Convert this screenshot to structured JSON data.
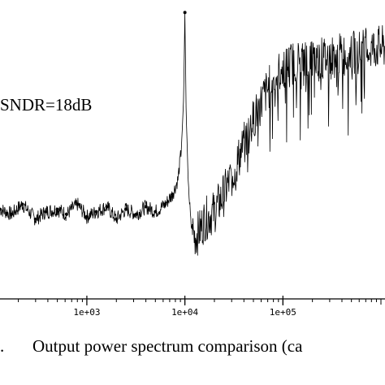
{
  "chart_data": {
    "type": "line",
    "title": "",
    "xlabel": "",
    "ylabel": "",
    "x_scale": "log",
    "xlim": [
      130,
      1100000
    ],
    "ylim": [
      -120,
      0
    ],
    "x_ticks": [
      {
        "value": 1000,
        "label": "1e+03"
      },
      {
        "value": 10000,
        "label": "1e+04"
      },
      {
        "value": 100000,
        "label": "1e+05"
      }
    ],
    "annotations": [
      "SNDR=18dB"
    ],
    "caption": "Output power spectrum comparison (ca",
    "caption_prefix": ".",
    "signal_tone": {
      "x": 10000,
      "y": -5
    },
    "series": [
      {
        "x": [
          130,
          170,
          220,
          300,
          380,
          500,
          620,
          800,
          1000,
          1250,
          1600,
          2000,
          2500,
          3200,
          4000,
          5000,
          6300,
          7500,
          8500,
          9200,
          9700,
          10000,
          10300,
          10800,
          11500,
          12500,
          14000,
          16000,
          20000,
          25000,
          32000,
          40000,
          50000,
          65000,
          80000,
          100000,
          130000,
          170000,
          220000,
          300000,
          400000,
          550000,
          700000,
          900000,
          1100000
        ],
        "values": [
          -84,
          -86,
          -82,
          -88,
          -85,
          -84,
          -86,
          -82,
          -87,
          -85,
          -83,
          -88,
          -84,
          -86,
          -83,
          -85,
          -82,
          -78,
          -72,
          -60,
          -40,
          -5,
          -45,
          -72,
          -90,
          -95,
          -93,
          -88,
          -85,
          -78,
          -68,
          -58,
          -48,
          -38,
          -32,
          -27,
          -25,
          -24,
          -24,
          -23,
          -22,
          -21,
          -20,
          -19,
          -19
        ]
      }
    ]
  }
}
